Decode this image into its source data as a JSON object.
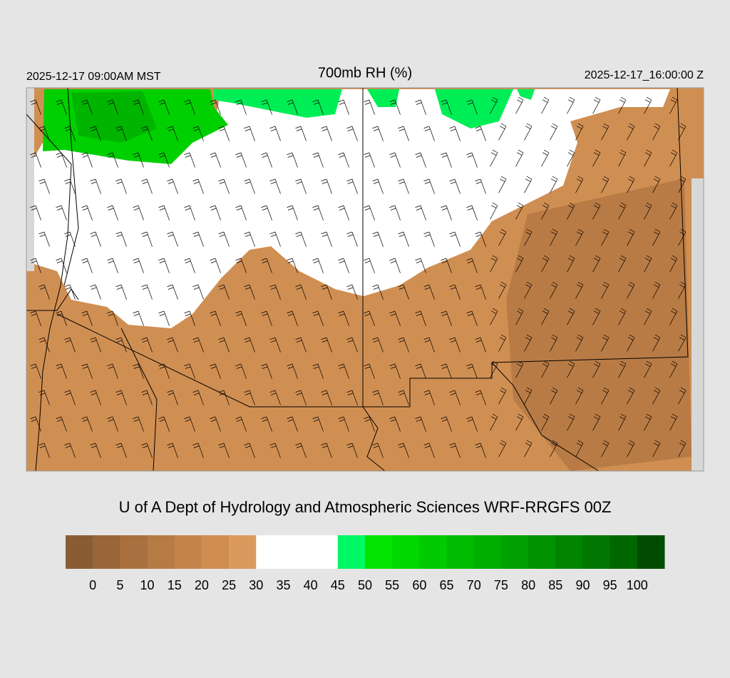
{
  "header": {
    "local_time": "2025-12-17 09:00AM MST",
    "title": "700mb RH (%)",
    "valid_time": "2025-12-17_16:00:00 Z"
  },
  "credit": "U of A Dept of Hydrology and Atmospheric Sciences WRF-RRGFS 00Z",
  "colorbar": {
    "colors": [
      "#8a5c34",
      "#9a6639",
      "#a8703e",
      "#b67a44",
      "#c3844a",
      "#cf8e50",
      "#da9a5e",
      "#ffffff",
      "#ffffff",
      "#ffffff",
      "#00f864",
      "#00e400",
      "#00d800",
      "#00ca00",
      "#00bc00",
      "#00ae00",
      "#00a000",
      "#009200",
      "#008400",
      "#007600",
      "#006600",
      "#004c00"
    ],
    "labels": [
      "0",
      "5",
      "10",
      "15",
      "20",
      "25",
      "30",
      "35",
      "40",
      "45",
      "50",
      "55",
      "60",
      "65",
      "70",
      "75",
      "80",
      "85",
      "90",
      "95",
      "100"
    ]
  }
}
